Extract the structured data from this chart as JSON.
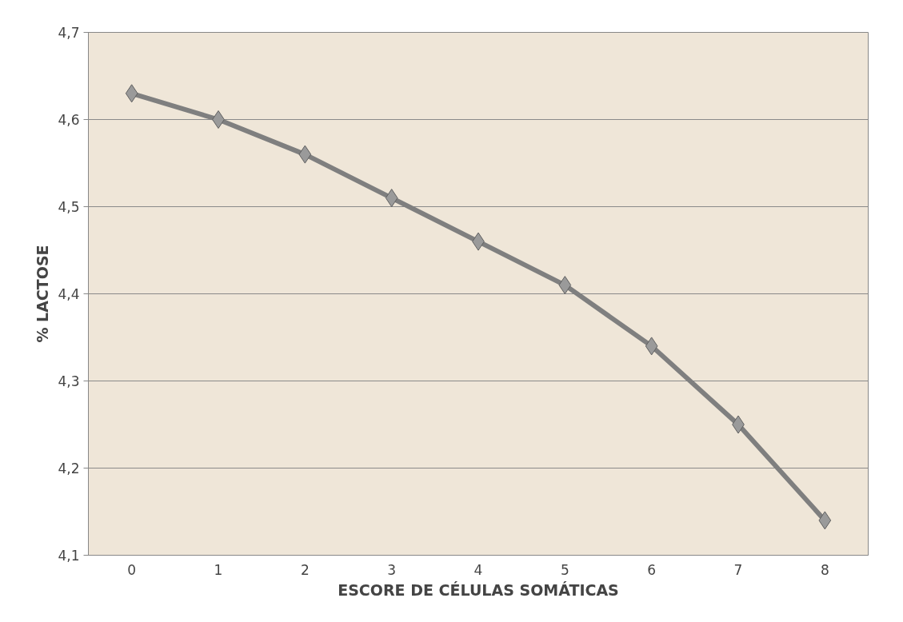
{
  "chart_data": {
    "type": "line",
    "xlabel": "ESCORE DE CÉLULAS SOMÁTICAS",
    "ylabel": "% LACTOSE",
    "categories": [
      "0",
      "1",
      "2",
      "3",
      "4",
      "5",
      "6",
      "7",
      "8"
    ],
    "series": [
      {
        "color": "#7f7f7f",
        "values": [
          4.63,
          4.6,
          4.56,
          4.51,
          4.46,
          4.41,
          4.34,
          4.25,
          4.14
        ]
      }
    ],
    "ylim": [
      4.1,
      4.7
    ],
    "yticks": [
      {
        "value": 4.1,
        "label": "4,1"
      },
      {
        "value": 4.2,
        "label": "4,2"
      },
      {
        "value": 4.3,
        "label": "4,3"
      },
      {
        "value": 4.4,
        "label": "4,4"
      },
      {
        "value": 4.5,
        "label": "4,5"
      },
      {
        "value": 4.6,
        "label": "4,6"
      },
      {
        "value": 4.7,
        "label": "4,7"
      }
    ],
    "grid": "y",
    "marker": "diamond"
  }
}
